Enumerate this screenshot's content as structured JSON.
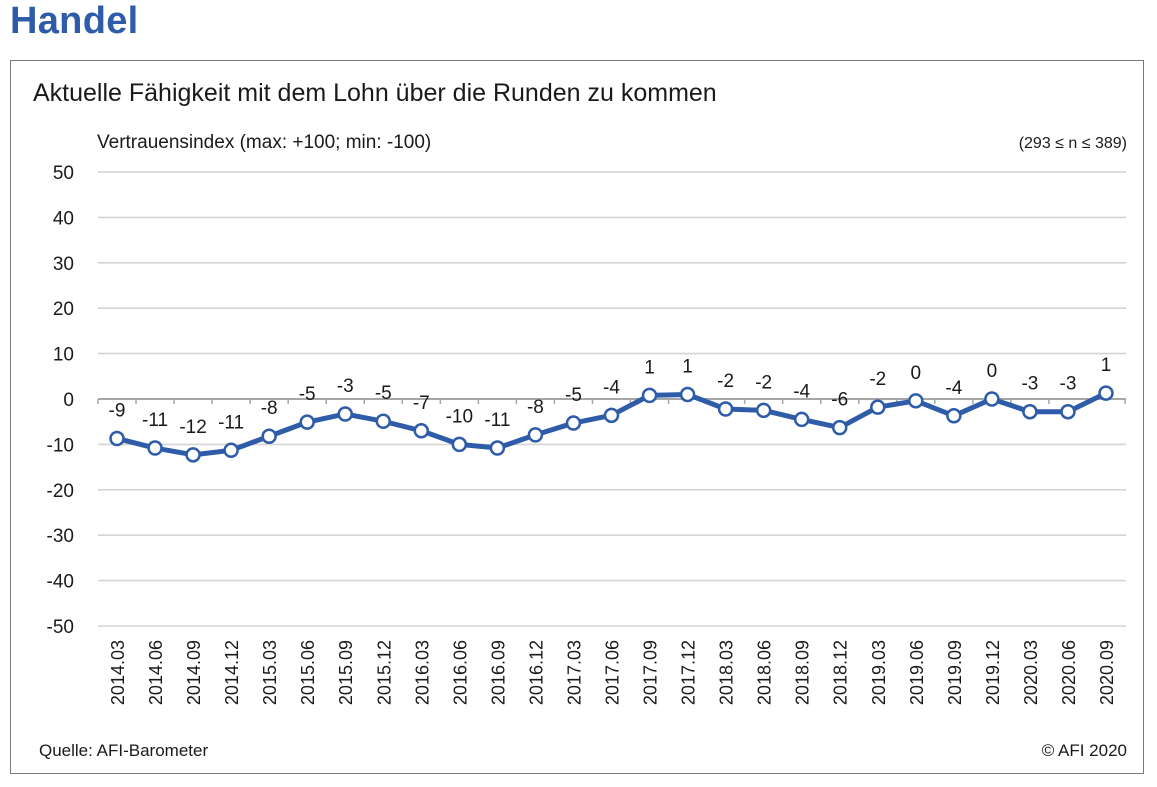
{
  "header": {
    "title": "Handel"
  },
  "chart": {
    "subtitle_label": "Vertrauensindex (max: +100; min: -100)",
    "sample_note": "(293 ≤ n ≤ 389)",
    "source": "Quelle: AFI-Barometer",
    "copyright": "© AFI 2020"
  },
  "colors": {
    "accent": "#2e5ca8",
    "line": "#2e5ca8",
    "grid": "#d4d4d4",
    "zero_line": "#a6a6a6"
  },
  "chart_data": {
    "type": "line",
    "title": "Aktuelle Fähigkeit mit dem Lohn über die Runden zu kommen",
    "ylabel": "Vertrauensindex (max: +100; min: -100)",
    "xlabel": "",
    "ylim": [
      -50,
      50
    ],
    "yticks": [
      50,
      40,
      30,
      20,
      10,
      0,
      -10,
      -20,
      -30,
      -40,
      -50
    ],
    "grid": true,
    "categories": [
      "2014.03",
      "2014.06",
      "2014.09",
      "2014.12",
      "2015.03",
      "2015.06",
      "2015.09",
      "2015.12",
      "2016.03",
      "2016.06",
      "2016.09",
      "2016.12",
      "2017.03",
      "2017.06",
      "2017.09",
      "2017.12",
      "2018.03",
      "2018.06",
      "2018.09",
      "2018.12",
      "2019.03",
      "2019.06",
      "2019.09",
      "2019.12",
      "2020.03",
      "2020.06",
      "2020.09"
    ],
    "values": [
      -8.7,
      -10.8,
      -12.3,
      -11.3,
      -8.2,
      -5.1,
      -3.3,
      -4.9,
      -7.0,
      -10.0,
      -10.8,
      -7.9,
      -5.3,
      -3.6,
      0.8,
      1.0,
      -2.2,
      -2.5,
      -4.5,
      -6.3,
      -1.8,
      -0.4,
      -3.7,
      0.0,
      -2.8,
      -2.8,
      1.3
    ],
    "data_labels": [
      "-9",
      "-11",
      "-12",
      "-11",
      "-8",
      "-5",
      "-3",
      "-5",
      "-7",
      "-10",
      "-11",
      "-8",
      "-5",
      "-4",
      "1",
      "1",
      "-2",
      "-2",
      "-4",
      "-6",
      "-2",
      "0",
      "-4",
      "0",
      "-3",
      "-3",
      "1"
    ]
  }
}
